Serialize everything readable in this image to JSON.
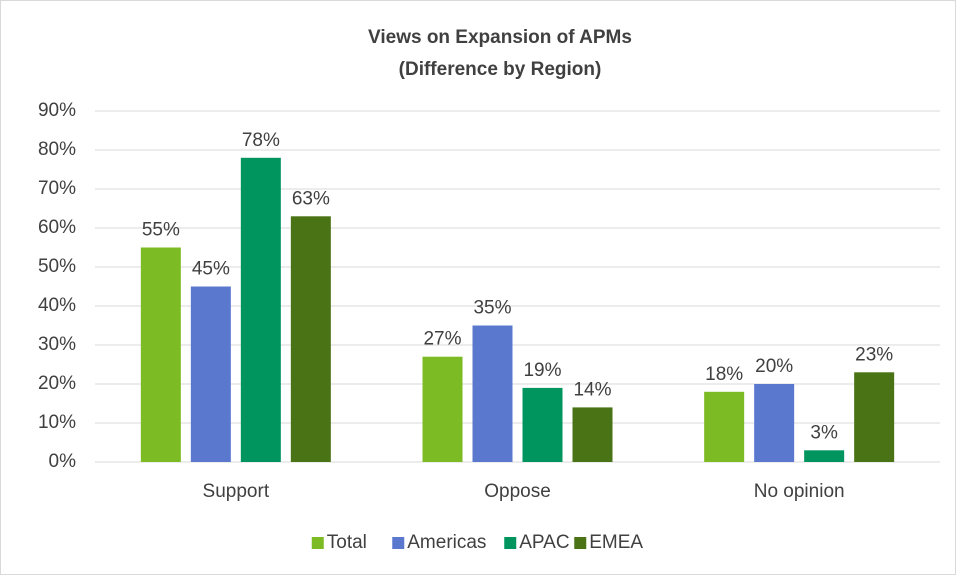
{
  "chart_data": {
    "type": "bar",
    "title": "Views on Expansion of APMs",
    "subtitle": "(Difference by Region)",
    "categories": [
      "Support",
      "Oppose",
      "No opinion"
    ],
    "series": [
      {
        "name": "Total",
        "color": "#7cbb23",
        "values": [
          55,
          27,
          18
        ],
        "value_labels": [
          "55%",
          "27%",
          "18%"
        ]
      },
      {
        "name": "Americas",
        "color": "#5b78cf",
        "values": [
          45,
          35,
          20
        ],
        "value_labels": [
          "45%",
          "35%",
          "20%"
        ]
      },
      {
        "name": "APAC",
        "color": "#00955e",
        "values": [
          78,
          19,
          3
        ],
        "value_labels": [
          "78%",
          "19%",
          "3%"
        ]
      },
      {
        "name": "EMEA",
        "color": "#4a7316",
        "values": [
          63,
          14,
          23
        ],
        "value_labels": [
          "63%",
          "14%",
          "23%"
        ]
      }
    ],
    "ylim": [
      0,
      90
    ],
    "yticks": [
      {
        "value": 0,
        "label": "0%"
      },
      {
        "value": 10,
        "label": "10%"
      },
      {
        "value": 20,
        "label": "20%"
      },
      {
        "value": 30,
        "label": "30%"
      },
      {
        "value": 40,
        "label": "40%"
      },
      {
        "value": 50,
        "label": "50%"
      },
      {
        "value": 60,
        "label": "60%"
      },
      {
        "value": 70,
        "label": "70%"
      },
      {
        "value": 80,
        "label": "80%"
      },
      {
        "value": 90,
        "label": "90%"
      }
    ],
    "grid": true,
    "legend": "bottom"
  }
}
